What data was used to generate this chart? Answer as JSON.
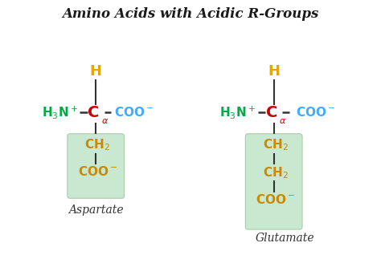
{
  "title": "Amino Acids with Acidic R-Groups",
  "bg_color": "#ffffff",
  "title_color": "#1a1a1a",
  "colors": {
    "H3N": "#00aa44",
    "Ca": "#cc0000",
    "COO_blue": "#44aaff",
    "H": "#ddaa00",
    "R_group": "#cc8800",
    "bond": "#333333",
    "dash": "#333333"
  },
  "box_color": "#c8e8d0",
  "label1": "Aspartate",
  "label2": "Glutamate"
}
